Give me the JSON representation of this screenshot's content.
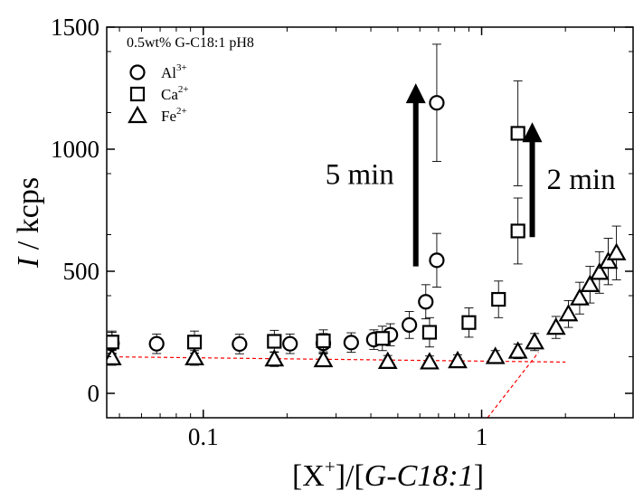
{
  "chart_data": {
    "type": "scatter",
    "x_scale": "log",
    "xlim": [
      0.045,
      3.5
    ],
    "ylim": [
      -100,
      1500
    ],
    "x_ticks": [
      0.1,
      1
    ],
    "x_tick_labels": [
      "0.1",
      "1"
    ],
    "y_ticks": [
      0,
      500,
      1000,
      1500
    ],
    "y_tick_labels": [
      "0",
      "500",
      "1000",
      "1500"
    ],
    "xlabel": {
      "open": "[X",
      "sup": "+",
      "mid": "]/[",
      "italic": "G-C18:1",
      "close": "]"
    },
    "ylabel": {
      "italic": "I",
      "rest": " / kcps"
    },
    "legend_title": "0.5wt% G-C18:1 pH8",
    "legend_placement": "top-left",
    "series": [
      {
        "name": "Al3+",
        "label_base": "Al",
        "label_sup": "3+",
        "marker": "circle",
        "points": [
          {
            "x": 0.047,
            "y": 205,
            "err": 45
          },
          {
            "x": 0.068,
            "y": 203,
            "err": 40
          },
          {
            "x": 0.135,
            "y": 202,
            "err": 40
          },
          {
            "x": 0.205,
            "y": 203,
            "err": 40
          },
          {
            "x": 0.27,
            "y": 205,
            "err": 40
          },
          {
            "x": 0.34,
            "y": 208,
            "err": 40
          },
          {
            "x": 0.41,
            "y": 220,
            "err": 40
          },
          {
            "x": 0.47,
            "y": 240,
            "err": 45
          },
          {
            "x": 0.55,
            "y": 280,
            "err": 55
          },
          {
            "x": 0.63,
            "y": 375,
            "err": 70
          },
          {
            "x": 0.69,
            "y": 545,
            "err": 110
          },
          {
            "x": 0.69,
            "y": 1190,
            "err": 240
          }
        ]
      },
      {
        "name": "Ca2+",
        "label_base": "Ca",
        "label_sup": "2+",
        "marker": "square",
        "points": [
          {
            "x": 0.047,
            "y": 210,
            "err": 45
          },
          {
            "x": 0.093,
            "y": 210,
            "err": 45
          },
          {
            "x": 0.18,
            "y": 213,
            "err": 45
          },
          {
            "x": 0.27,
            "y": 215,
            "err": 45
          },
          {
            "x": 0.44,
            "y": 225,
            "err": 50
          },
          {
            "x": 0.65,
            "y": 250,
            "err": 60
          },
          {
            "x": 0.9,
            "y": 290,
            "err": 60
          },
          {
            "x": 1.15,
            "y": 385,
            "err": 75
          },
          {
            "x": 1.35,
            "y": 665,
            "err": 135
          },
          {
            "x": 1.35,
            "y": 1065,
            "err": 215
          }
        ]
      },
      {
        "name": "Fe2+",
        "label_base": "Fe",
        "label_sup": "2+",
        "marker": "triangle",
        "points": [
          {
            "x": 0.047,
            "y": 145,
            "err": 30
          },
          {
            "x": 0.093,
            "y": 145,
            "err": 30
          },
          {
            "x": 0.18,
            "y": 140,
            "err": 30
          },
          {
            "x": 0.27,
            "y": 137,
            "err": 25
          },
          {
            "x": 0.46,
            "y": 130,
            "err": 25
          },
          {
            "x": 0.65,
            "y": 128,
            "err": 25
          },
          {
            "x": 0.82,
            "y": 133,
            "err": 25
          },
          {
            "x": 1.12,
            "y": 150,
            "err": 25
          },
          {
            "x": 1.35,
            "y": 172,
            "err": 30
          },
          {
            "x": 1.55,
            "y": 210,
            "err": 35
          },
          {
            "x": 1.85,
            "y": 270,
            "err": 45
          },
          {
            "x": 2.05,
            "y": 325,
            "err": 55
          },
          {
            "x": 2.25,
            "y": 390,
            "err": 65
          },
          {
            "x": 2.45,
            "y": 445,
            "err": 75
          },
          {
            "x": 2.65,
            "y": 495,
            "err": 85
          },
          {
            "x": 2.85,
            "y": 540,
            "err": 95
          },
          {
            "x": 3.05,
            "y": 575,
            "err": 110
          }
        ]
      }
    ],
    "fit_lines": [
      {
        "color": "#ff0000",
        "style": "dashed",
        "from": {
          "x": 0.045,
          "y": 150
        },
        "to": {
          "x": 2.0,
          "y": 128
        }
      },
      {
        "color": "#ff0000",
        "style": "dashed",
        "from": {
          "x": 1.05,
          "y": -100
        },
        "to": {
          "x": 1.6,
          "y": 168
        }
      }
    ],
    "annotations": [
      {
        "text": "5 min",
        "arrow_x": 0.58,
        "arrow_from_y": 520,
        "arrow_to_y": 1270
      },
      {
        "text": "2 min",
        "arrow_x": 1.52,
        "arrow_from_y": 640,
        "arrow_to_y": 1110
      }
    ]
  }
}
